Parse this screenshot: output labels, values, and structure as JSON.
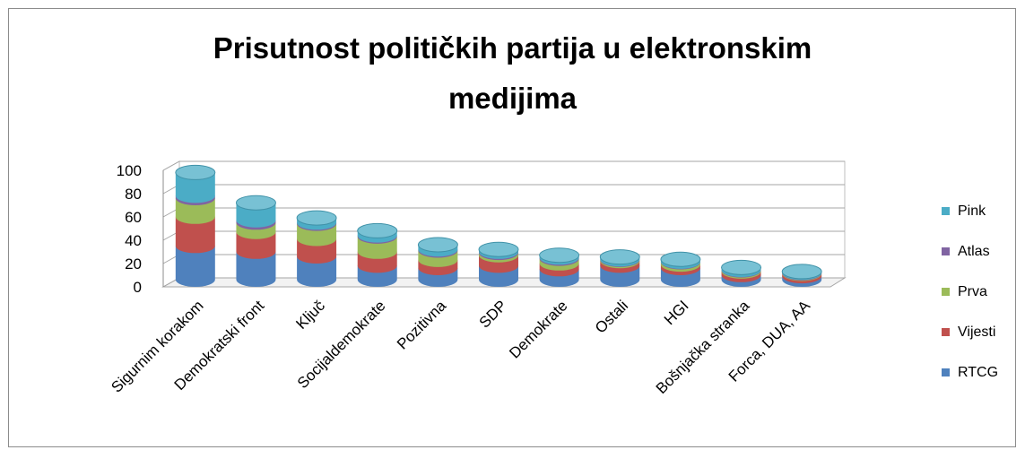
{
  "chart_data": {
    "type": "bar",
    "subtype": "stacked-cylinder-3d",
    "title_lines": [
      "Prisutnost političkih partija u elektronskim",
      "medijima"
    ],
    "categories": [
      "Sigurnim korakom",
      "Demokratski front",
      "Ključ",
      "Socijaldemokrate",
      "Pozitivna",
      "SDP",
      "Demokrate",
      "Ostali",
      "HGI",
      "Bošnjačka stranka",
      "Forca, DUA, AA"
    ],
    "series": [
      {
        "name": "RTCG",
        "color": "#4f81bd",
        "values": [
          29,
          24,
          20,
          12,
          10,
          12,
          9,
          12,
          10,
          4,
          3
        ]
      },
      {
        "name": "Vijesti",
        "color": "#c0504d",
        "values": [
          25,
          17,
          15,
          12,
          7,
          9,
          5,
          4,
          3,
          3,
          2
        ]
      },
      {
        "name": "Prva",
        "color": "#9bbb59",
        "values": [
          16,
          8,
          13,
          13,
          8,
          2,
          4,
          1,
          2,
          1,
          0.5
        ]
      },
      {
        "name": "Atlas",
        "color": "#8064a2",
        "values": [
          2,
          2,
          1,
          1,
          1,
          1,
          1,
          0.5,
          0.5,
          0.5,
          0.5
        ]
      },
      {
        "name": "Pink",
        "color": "#4bacc6",
        "values": [
          20,
          15,
          4,
          4,
          4,
          2,
          2,
          2,
          2,
          2,
          1
        ]
      }
    ],
    "ylim": [
      0,
      100
    ],
    "yticks": [
      "0",
      "20",
      "40",
      "60",
      "80",
      "100"
    ],
    "legend_position": "right",
    "legend_order": [
      "Pink",
      "Atlas",
      "Prva",
      "Vijesti",
      "RTCG"
    ],
    "grid": true
  }
}
